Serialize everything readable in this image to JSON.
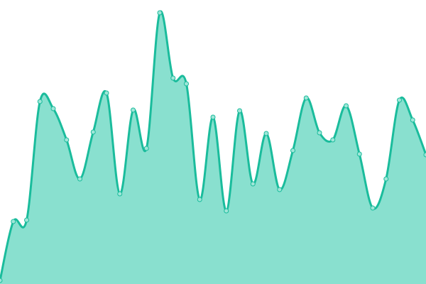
{
  "chart_data": {
    "type": "area",
    "title": "",
    "xlabel": "",
    "ylabel": "",
    "grid": false,
    "axes_visible": false,
    "x": [
      0,
      1,
      2,
      3,
      4,
      5,
      6,
      7,
      8,
      9,
      10,
      11,
      12,
      13,
      14,
      15,
      16,
      17,
      18,
      19,
      20,
      21,
      22,
      23,
      24,
      25,
      26,
      27,
      28,
      29,
      30,
      31,
      32
    ],
    "values": [
      5,
      88,
      90,
      257,
      247,
      203,
      148,
      214,
      269,
      127,
      245,
      191,
      382,
      290,
      282,
      119,
      235,
      103,
      244,
      141,
      212,
      133,
      188,
      262,
      213,
      203,
      251,
      183,
      107,
      148,
      259,
      231,
      182
    ],
    "ylim": [
      0,
      400
    ],
    "colors": {
      "line": "#1abc9c",
      "fill": "#89e0cf",
      "point_fill": "#9fe6d8",
      "point_stroke": "#1abc9c"
    },
    "curve": "smooth",
    "markers": true
  }
}
